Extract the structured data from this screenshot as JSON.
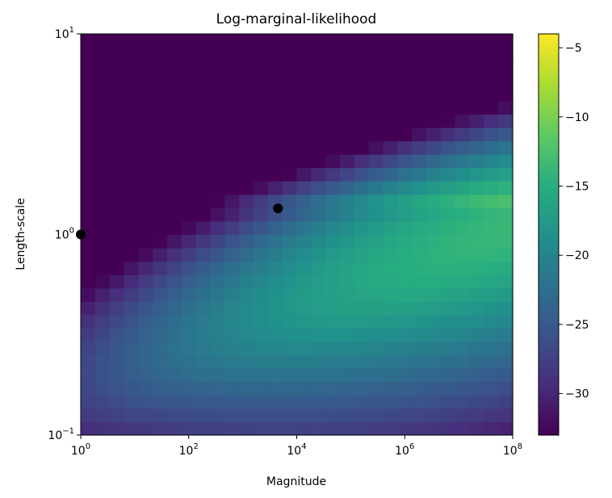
{
  "chart_data": {
    "type": "heatmap",
    "title": "Log-marginal-likelihood",
    "xlabel": "Magnitude",
    "ylabel": "Length-scale",
    "x_scale": "log",
    "y_scale": "log",
    "xlim": [
      1,
      100000000
    ],
    "ylim": [
      0.1,
      10
    ],
    "x_ticks": [
      {
        "value": 1,
        "base": "10",
        "exp": "0"
      },
      {
        "value": 100,
        "base": "10",
        "exp": "2"
      },
      {
        "value": 10000,
        "base": "10",
        "exp": "4"
      },
      {
        "value": 1000000,
        "base": "10",
        "exp": "6"
      },
      {
        "value": 100000000,
        "base": "10",
        "exp": "8"
      }
    ],
    "y_ticks": [
      {
        "value": 0.1,
        "base": "10",
        "exp": "−1"
      },
      {
        "value": 1,
        "base": "10",
        "exp": "0"
      },
      {
        "value": 10,
        "base": "10",
        "exp": "1"
      }
    ],
    "grid": false,
    "colormap": "viridis",
    "grid_size": [
      30,
      30
    ],
    "color_range": [
      -33,
      -4
    ],
    "colorbar": {
      "ticks": [
        {
          "value": -5,
          "label": "−5"
        },
        {
          "value": -10,
          "label": "−10"
        },
        {
          "value": -15,
          "label": "−15"
        },
        {
          "value": -20,
          "label": "−20"
        },
        {
          "value": -25,
          "label": "−25"
        },
        {
          "value": -30,
          "label": "−30"
        }
      ]
    },
    "points": [
      {
        "x": 1,
        "y": 1
      },
      {
        "x": 4500,
        "y": 1.35
      }
    ],
    "marker_color": "#000000"
  }
}
